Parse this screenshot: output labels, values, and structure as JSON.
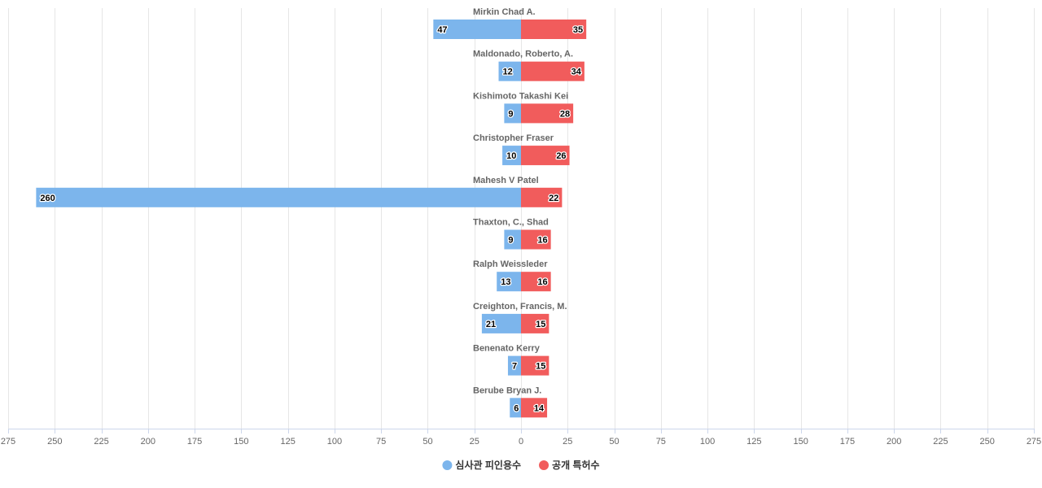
{
  "chart_data": {
    "type": "bar",
    "orientation": "horizontal-diverging",
    "categories": [
      "Mirkin Chad A.",
      "Maldonado, Roberto, A.",
      "Kishimoto Takashi Kei",
      "Christopher Fraser",
      "Mahesh V Patel",
      "Thaxton, C., Shad",
      "Ralph Weissleder",
      "Creighton, Francis, M.",
      "Benenato Kerry",
      "Berube Bryan J."
    ],
    "series": [
      {
        "name": "심사관 피인용수",
        "color": "#7cb5ec",
        "side": "left",
        "values": [
          47,
          12,
          9,
          10,
          260,
          9,
          13,
          21,
          7,
          6
        ]
      },
      {
        "name": "공개 특허수",
        "color": "#f15c5c",
        "side": "right",
        "values": [
          35,
          34,
          28,
          26,
          22,
          16,
          16,
          15,
          15,
          14
        ]
      }
    ],
    "xlim": [
      -275,
      275
    ],
    "x_ticks": [
      -275,
      -250,
      -225,
      -200,
      -175,
      -150,
      -125,
      -100,
      -75,
      -50,
      -25,
      0,
      25,
      50,
      75,
      100,
      125,
      150,
      175,
      200,
      225,
      250,
      275
    ],
    "x_tick_labels": [
      "275",
      "250",
      "225",
      "200",
      "175",
      "150",
      "125",
      "100",
      "75",
      "50",
      "25",
      "0",
      "25",
      "50",
      "75",
      "100",
      "125",
      "150",
      "175",
      "200",
      "225",
      "250",
      "275"
    ],
    "grid": true,
    "data_labels": true,
    "legend_position": "bottom-center",
    "title": "",
    "xlabel": "",
    "ylabel": ""
  }
}
